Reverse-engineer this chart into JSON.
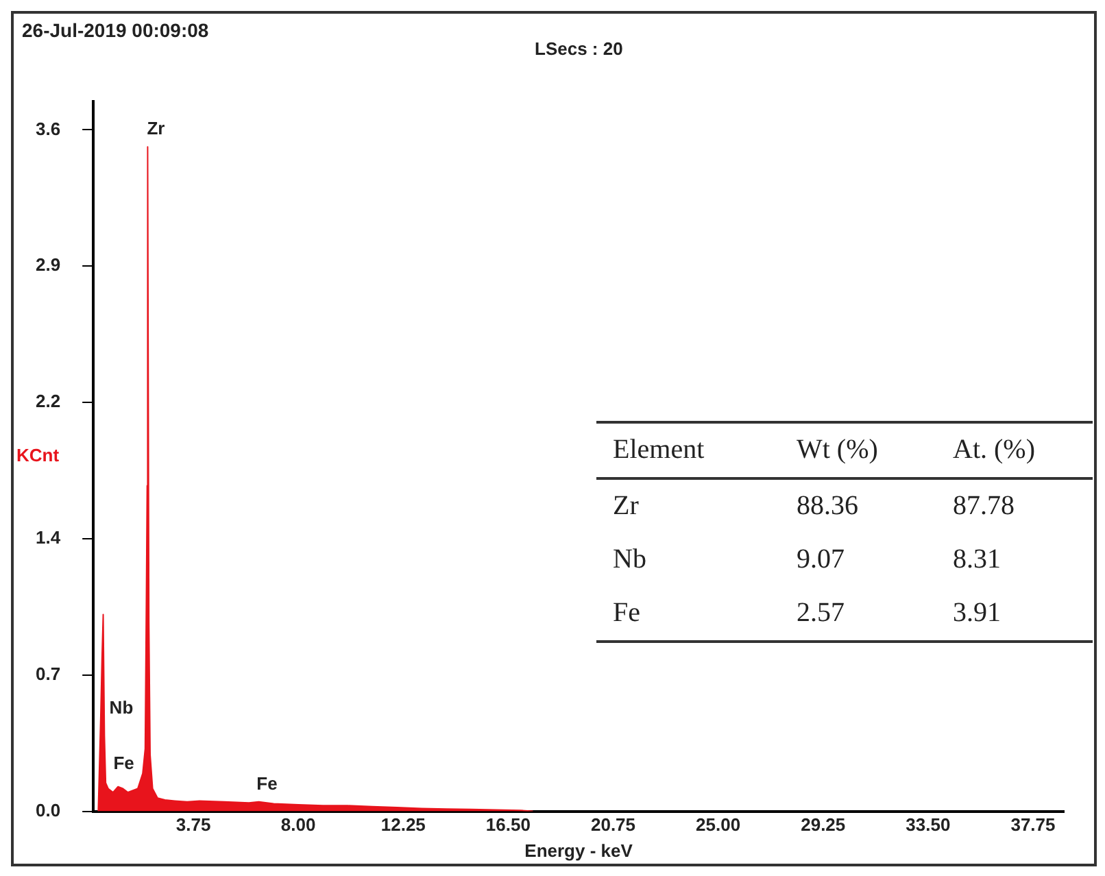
{
  "chart_data": {
    "type": "area",
    "title": "26-Jul-2019 00:09:08",
    "subtitle": "LSecs : 20",
    "xlabel": "Energy - keV",
    "ylabel": "KCnt",
    "xlim": [
      -0.3,
      39
    ],
    "xticks": [
      {
        "value": 3.75,
        "label": "3.75"
      },
      {
        "value": 8,
        "label": "8.00"
      },
      {
        "value": 12.25,
        "label": "12.25"
      },
      {
        "value": 16.5,
        "label": "16.50"
      },
      {
        "value": 20.75,
        "label": "20.75"
      },
      {
        "value": 25,
        "label": "25.00"
      },
      {
        "value": 29.25,
        "label": "29.25"
      },
      {
        "value": 33.5,
        "label": "33.50"
      },
      {
        "value": 37.75,
        "label": "37.75"
      }
    ],
    "ylim": [
      0,
      3.75
    ],
    "yticks": [
      {
        "value": 0,
        "label": "0.0"
      },
      {
        "value": 0.72,
        "label": "0.7"
      },
      {
        "value": 1.44,
        "label": "1.4"
      },
      {
        "value": 2.16,
        "label": "2.2"
      },
      {
        "value": 2.88,
        "label": "2.9"
      },
      {
        "value": 3.6,
        "label": "3.6"
      }
    ],
    "grid": false,
    "legend": false,
    "marker": "none",
    "series": [
      {
        "color": "#e8141c",
        "x": [
          -0.1,
          0.0,
          0.05,
          0.1,
          0.15,
          0.2,
          0.3,
          0.5,
          0.7,
          0.9,
          1.1,
          1.3,
          1.5,
          1.7,
          1.8,
          1.85,
          1.88,
          1.9,
          1.95,
          2.0,
          2.1,
          2.3,
          2.6,
          3.0,
          3.5,
          4.0,
          5.0,
          6.0,
          6.4,
          7.0,
          8.0,
          9.0,
          10.0,
          11.0,
          12.0,
          13.0,
          14.0,
          15.0,
          16.0,
          17.0,
          17.5
        ],
        "values": [
          0,
          0.5,
          0.8,
          1.04,
          0.4,
          0.15,
          0.12,
          0.1,
          0.13,
          0.12,
          0.1,
          0.11,
          0.12,
          0.2,
          0.33,
          1.16,
          1.72,
          3.51,
          1.0,
          0.3,
          0.12,
          0.07,
          0.06,
          0.055,
          0.05,
          0.055,
          0.05,
          0.045,
          0.05,
          0.04,
          0.035,
          0.03,
          0.03,
          0.025,
          0.02,
          0.015,
          0.012,
          0.01,
          0.008,
          0.005,
          0
        ]
      }
    ],
    "annotations": [
      {
        "text": "Zr",
        "x": 1.9,
        "y": 3.51
      },
      {
        "text": "Nb",
        "x": 0.5,
        "y": 0.45
      },
      {
        "text": "Fe",
        "x": 0.6,
        "y": 0.16
      },
      {
        "text": "Fe",
        "x": 6.4,
        "y": 0.05
      },
      "Element",
      "Wt (%)",
      "At. (%)",
      "Zr",
      "88.36",
      "87.78",
      "Nb",
      "9.07",
      "8.31",
      "Fe",
      "2.57",
      "3.91"
    ]
  }
}
